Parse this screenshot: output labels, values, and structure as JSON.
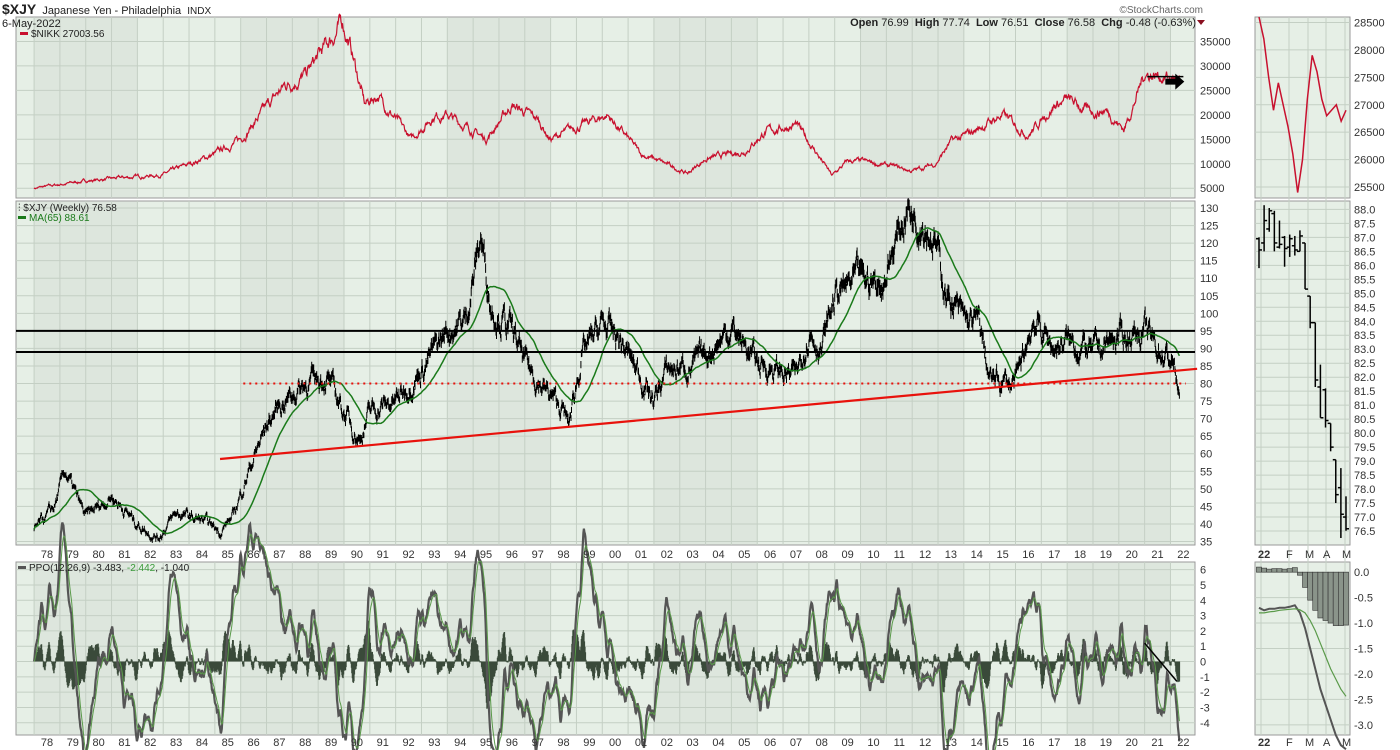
{
  "header": {
    "symbol": "$XJY",
    "name": "Japanese Yen - Philadelphia",
    "exchange": "INDX",
    "date": "6-May-2022",
    "brand": "©StockCharts.com",
    "open_label": "Open",
    "open": "76.99",
    "high_label": "High",
    "high": "77.74",
    "low_label": "Low",
    "low": "76.51",
    "close_label": "Close",
    "close": "76.58",
    "chg_label": "Chg",
    "chg": "-0.48 (-0.63%)"
  },
  "colors": {
    "nikkei": "#c8102e",
    "price": "#000000",
    "ma": "#1a7a1a",
    "trend": "#e8120c",
    "bg": "#e6efe6",
    "bgAlt": "#dde6dd",
    "ppoLine": "#555555",
    "ppoSignal": "#5a9a4a",
    "hist": "#3a4a3a"
  },
  "chart_data": [
    {
      "type": "line",
      "panel": "top",
      "legend": "$NIKK 27003.56",
      "yticks": [
        "5000",
        "10000",
        "15000",
        "20000",
        "25000",
        "30000",
        "35000"
      ],
      "ylim": [
        3000,
        40000
      ],
      "x": [
        1978,
        1980,
        1983,
        1985,
        1986,
        1987.7,
        1988.5,
        1989.95,
        1990.3,
        1990.8,
        1991.3,
        1992.6,
        1993.5,
        1994,
        1995.5,
        1996.5,
        1997.5,
        1998,
        1999,
        2000.2,
        2001.5,
        2002,
        2003.3,
        2004,
        2005.5,
        2006.3,
        2007.5,
        2008.2,
        2008.9,
        2009.5,
        2010,
        2011.2,
        2012,
        2012.9,
        2013.5,
        2014,
        2015.5,
        2016.5,
        2017.5,
        2018,
        2018.9,
        2019.5,
        2020.2,
        2020.6,
        2021,
        2021.7,
        2022.35
      ],
      "values": [
        5000,
        6500,
        7800,
        12000,
        15000,
        26000,
        28000,
        38900,
        33000,
        22000,
        24000,
        15000,
        20000,
        20000,
        15000,
        22000,
        19000,
        15000,
        17500,
        20000,
        12000,
        11000,
        8000,
        11000,
        12500,
        16500,
        18000,
        13000,
        7500,
        10500,
        10500,
        9500,
        8500,
        10000,
        14500,
        15500,
        20000,
        16000,
        22000,
        23000,
        20500,
        21000,
        17000,
        22500,
        28500,
        28000,
        27000
      ],
      "annotation": "right-arrow-at-27000"
    },
    {
      "type": "ohlc-line",
      "panel": "middle",
      "legend": "$XJY (Weekly) 76.58",
      "ma_legend": "MA(65) 88.61",
      "ma_period": 65,
      "yticks": [
        "35",
        "40",
        "45",
        "50",
        "55",
        "60",
        "65",
        "70",
        "75",
        "80",
        "85",
        "90",
        "95",
        "100",
        "105",
        "110",
        "115",
        "120",
        "125",
        "130"
      ],
      "ylim": [
        34,
        132
      ],
      "x": [
        1978,
        1978.8,
        1979.2,
        1980,
        1981,
        1982,
        1982.8,
        1983.5,
        1984.5,
        1985.2,
        1985.7,
        1986.3,
        1987,
        1987.5,
        1988.5,
        1989.3,
        1990,
        1990.3,
        1990.6,
        1991,
        1992,
        1993,
        1994,
        1994.7,
        1995.3,
        1995.7,
        1996.5,
        1997,
        1997.6,
        1998.5,
        1998.7,
        1999.2,
        2000,
        2000.7,
        2001.5,
        2002,
        2002.5,
        2003.5,
        2004,
        2005,
        2006,
        2007,
        2007.5,
        2008,
        2008.5,
        2009,
        2010,
        2010.8,
        2011.8,
        2012.5,
        2012.9,
        2013.3,
        2014,
        2014.6,
        2015,
        2016,
        2016.7,
        2017.5,
        2018,
        2019,
        2020,
        2021,
        2021.5,
        2022.1,
        2022.35
      ],
      "values": [
        38,
        45,
        55,
        42,
        48,
        40,
        36,
        43,
        41,
        38,
        42,
        55,
        68,
        74,
        80,
        82,
        72,
        68,
        64,
        72,
        75,
        84,
        95,
        98,
        122,
        102,
        95,
        86,
        80,
        72,
        68,
        88,
        97,
        92,
        82,
        75,
        84,
        85,
        88,
        96,
        86,
        83,
        82,
        95,
        90,
        105,
        110,
        108,
        130,
        126,
        120,
        106,
        98,
        97,
        81,
        80,
        98,
        90,
        92,
        89,
        93,
        95,
        90,
        86,
        76.58
      ],
      "levels": {
        "resistance_upper": 95,
        "resistance_lower": 89,
        "support_dotted": 80
      },
      "trendline": {
        "x": [
          1985.2,
          2022.8
        ],
        "y": [
          58.5,
          84.2
        ]
      }
    },
    {
      "type": "line+histogram",
      "panel": "bottom",
      "legend": "PPO(12,26,9)",
      "legend_vals": [
        "-3.483",
        "-2.442",
        "-1.040"
      ],
      "yticks": [
        "-4",
        "-3",
        "-2",
        "-1",
        "0",
        "1",
        "2",
        "3",
        "4",
        "5",
        "6"
      ],
      "ylim": [
        -4.8,
        6.5
      ],
      "trendline": {
        "x": [
          2021,
          2022.25
        ],
        "y": [
          1.2,
          -1.3
        ]
      }
    }
  ],
  "xaxis": {
    "years": [
      "78",
      "79",
      "80",
      "81",
      "82",
      "83",
      "84",
      "85",
      "86",
      "87",
      "88",
      "89",
      "90",
      "91",
      "92",
      "93",
      "94",
      "95",
      "96",
      "97",
      "98",
      "99",
      "00",
      "01",
      "02",
      "03",
      "04",
      "05",
      "06",
      "07",
      "08",
      "09",
      "10",
      "11",
      "12",
      "13",
      "14",
      "15",
      "16",
      "17",
      "18",
      "19",
      "20",
      "21",
      "22"
    ]
  },
  "mini": {
    "xlabels": [
      "22",
      "F",
      "M",
      "A",
      "M"
    ],
    "nikkei": {
      "yticks": [
        "25500",
        "26000",
        "26500",
        "27000",
        "27500",
        "28000",
        "28500"
      ],
      "ylim": [
        25300,
        28600
      ],
      "values": [
        28600,
        28200,
        27500,
        26900,
        27400,
        27000,
        26600,
        26100,
        25400,
        26000,
        27100,
        27900,
        27600,
        27100,
        26800,
        26900,
        27000,
        26700,
        26900
      ]
    },
    "xjy": {
      "yticks": [
        "76.5",
        "77.0",
        "77.5",
        "78.0",
        "78.5",
        "79.0",
        "79.5",
        "80.0",
        "80.5",
        "81.0",
        "81.5",
        "82.0",
        "82.5",
        "83.0",
        "83.5",
        "84.0",
        "84.5",
        "85.0",
        "85.5",
        "86.0",
        "86.5",
        "87.0",
        "87.5",
        "88.0"
      ],
      "ylim": [
        76.0,
        88.3
      ],
      "ohlc": [
        [
          86.95,
          87.0,
          85.9,
          86.55
        ],
        [
          86.8,
          88.15,
          86.5,
          87.6
        ],
        [
          87.3,
          88.05,
          87.2,
          87.95
        ],
        [
          87.85,
          87.95,
          86.5,
          86.8
        ],
        [
          86.65,
          87.6,
          86.6,
          86.75
        ],
        [
          87.0,
          87.05,
          85.95,
          86.6
        ],
        [
          86.65,
          87.1,
          86.3,
          86.95
        ],
        [
          86.7,
          87.05,
          86.35,
          86.55
        ],
        [
          86.5,
          87.25,
          86.5,
          87.05
        ],
        [
          86.8,
          86.8,
          85.15,
          85.15
        ],
        [
          84.9,
          84.9,
          83.75,
          83.95
        ],
        [
          83.95,
          83.95,
          81.65,
          81.9
        ],
        [
          81.65,
          82.45,
          80.55,
          80.55
        ],
        [
          81.55,
          81.6,
          80.2,
          80.45
        ],
        [
          80.35,
          80.35,
          79.35,
          79.5
        ],
        [
          79.05,
          79.05,
          77.5,
          77.8
        ],
        [
          78.05,
          78.75,
          76.25,
          77.1
        ],
        [
          77.0,
          77.74,
          76.51,
          76.58
        ]
      ]
    },
    "ppo": {
      "yticks": [
        "-3.0",
        "-2.5",
        "-2.0",
        "-1.5",
        "-1.0",
        "-0.5",
        "0.0"
      ],
      "ylim": [
        -3.2,
        0.2
      ],
      "line": [
        -0.7,
        -0.75,
        -0.72,
        -0.72,
        -0.7,
        -0.7,
        -0.68,
        -0.65,
        -0.8,
        -1.1,
        -1.5,
        -1.9,
        -2.3,
        -2.6,
        -2.9,
        -3.2,
        -3.4,
        -3.48
      ],
      "signal": [
        -0.8,
        -0.8,
        -0.78,
        -0.77,
        -0.75,
        -0.74,
        -0.73,
        -0.72,
        -0.74,
        -0.8,
        -0.95,
        -1.15,
        -1.4,
        -1.65,
        -1.9,
        -2.1,
        -2.3,
        -2.44
      ],
      "hist": [
        0.1,
        0.08,
        0.06,
        0.07,
        0.07,
        0.06,
        0.07,
        0.09,
        -0.06,
        -0.3,
        -0.55,
        -0.75,
        -0.9,
        -0.95,
        -1.0,
        -1.05,
        -1.05,
        -1.04
      ]
    }
  }
}
